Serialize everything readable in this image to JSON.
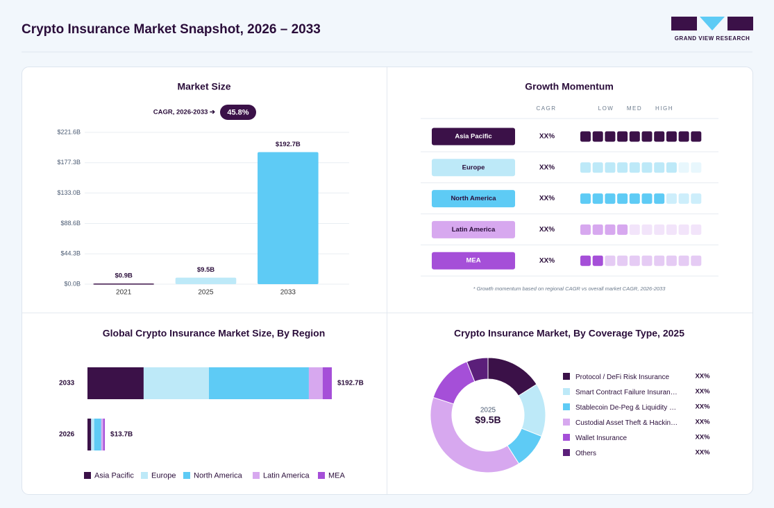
{
  "header": {
    "title": "Crypto Insurance Market Snapshot, 2026 – 2033",
    "logo_text": "GRAND VIEW RESEARCH"
  },
  "chart_data": [
    {
      "type": "bar",
      "title": "Market Size",
      "cagr_label": "CAGR, 2026-2033 ➔",
      "cagr": "45.8%",
      "categories": [
        "2021",
        "2025",
        "2033"
      ],
      "values": [
        0.9,
        9.5,
        192.7
      ],
      "value_labels": [
        "$0.9B",
        "$9.5B",
        "$192.7B"
      ],
      "colors": [
        "#3b1148",
        "#bde9f8",
        "#5ecbf5"
      ],
      "ylim": [
        0,
        221.6
      ],
      "yticks": [
        {
          "value": 0,
          "label": "$0.0B"
        },
        {
          "value": 44.3,
          "label": "$44.3B"
        },
        {
          "value": 88.6,
          "label": "$88.6B"
        },
        {
          "value": 133.0,
          "label": "$133.0B"
        },
        {
          "value": 177.3,
          "label": "$177.3B"
        },
        {
          "value": 221.6,
          "label": "$221.6B"
        }
      ],
      "grid": true
    },
    {
      "type": "momentum",
      "title": "Growth Momentum",
      "columns": [
        "CAGR",
        "LOW",
        "MED",
        "HIGH"
      ],
      "scale": 10,
      "rows": [
        {
          "name": "Asia Pacific",
          "cagr": "XX%",
          "level": 10,
          "color": "#3b1148",
          "faded_color": "#3b1148",
          "label_color": "#ffffff"
        },
        {
          "name": "Europe",
          "cagr": "XX%",
          "level": 8,
          "color": "#bde9f8",
          "faded_color": "#e8f7fd",
          "label_color": "#2a0d3a"
        },
        {
          "name": "North America",
          "cagr": "XX%",
          "level": 7,
          "color": "#5ecbf5",
          "faded_color": "#cdeefb",
          "label_color": "#2a0d3a"
        },
        {
          "name": "Latin America",
          "cagr": "XX%",
          "level": 4,
          "color": "#d7a8ef",
          "faded_color": "#f2e4fa",
          "label_color": "#2a0d3a"
        },
        {
          "name": "MEA",
          "cagr": "XX%",
          "level": 2,
          "color": "#a54fd8",
          "faded_color": "#e5cbf4",
          "label_color": "#ffffff"
        }
      ],
      "footnote": "* Growth momentum based on regional CAGR vs overall market CAGR, 2026-2033"
    },
    {
      "type": "hbar",
      "title": "Global Crypto Insurance Market Size, By Region",
      "categories": [
        "2033",
        "2026"
      ],
      "totals": [
        192.7,
        13.7
      ],
      "total_labels": [
        "$192.7B",
        "$13.7B"
      ],
      "series": [
        {
          "name": "Asia Pacific",
          "color": "#3b1148",
          "values": [
            44.3,
            2.9
          ]
        },
        {
          "name": "Europe",
          "color": "#bde9f8",
          "values": [
            51.5,
            2.4
          ]
        },
        {
          "name": "North America",
          "color": "#5ecbf5",
          "values": [
            78.8,
            5.5
          ]
        },
        {
          "name": "Latin America",
          "color": "#d7a8ef",
          "values": [
            10.9,
            1.6
          ]
        },
        {
          "name": "MEA",
          "color": "#a54fd8",
          "values": [
            7.2,
            1.3
          ]
        }
      ]
    },
    {
      "type": "donut",
      "title": "Crypto Insurance Market, By Coverage Type, 2025",
      "center_label": "2025",
      "center_value": "$9.5B",
      "categories": [
        "Protocol / DeFi Risk Insurance",
        "Smart Contract Failure Insuran…",
        "Stablecoin De-Peg & Liquidity …",
        "Custodial Asset Theft & Hackin…",
        "Wallet Insurance",
        "Others"
      ],
      "values": [
        16,
        15,
        10,
        39,
        14,
        6
      ],
      "share_labels": [
        "XX%",
        "XX%",
        "XX%",
        "XX%",
        "XX%",
        "XX%"
      ],
      "colors": [
        "#3b1148",
        "#bde9f8",
        "#5ecbf5",
        "#d7a8ef",
        "#a54fd8",
        "#5b1f7a"
      ]
    }
  ]
}
